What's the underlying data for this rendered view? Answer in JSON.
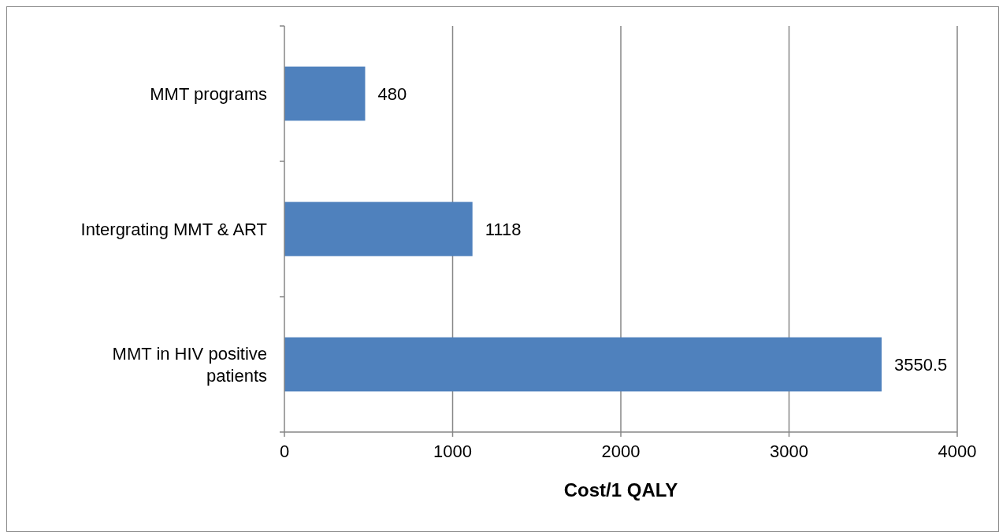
{
  "chart_data": {
    "type": "bar",
    "orientation": "horizontal",
    "xlabel": "Cost/1 QALY",
    "categories": [
      "MMT programs",
      "Intergrating MMT & ART",
      "MMT in HIV positive patients"
    ],
    "values": [
      480,
      1118,
      3550.5
    ],
    "color": "#4f81bd",
    "xlim": [
      0,
      4000
    ],
    "xticks": [
      0,
      1000,
      2000,
      3000,
      4000
    ],
    "grid": "x",
    "data_labels": true
  }
}
